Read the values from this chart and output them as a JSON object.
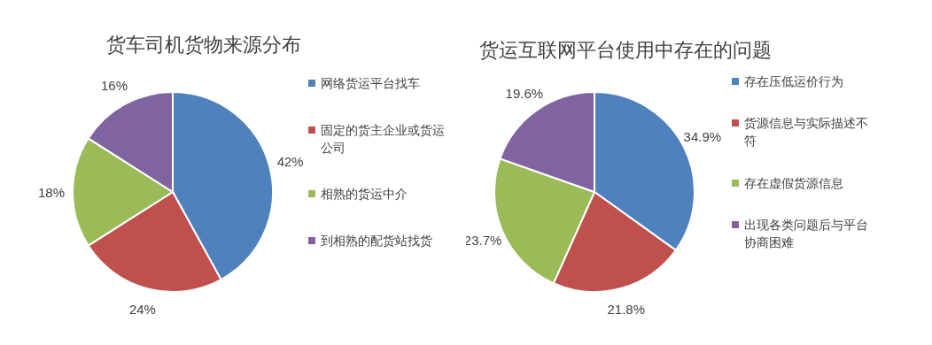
{
  "chart_data": [
    {
      "type": "pie",
      "title": "货车司机货物来源分布",
      "categories": [
        "网络货运平台找车",
        "固定的货主企业或货运公司",
        "相熟的货运中介",
        "到相熟的配货站找货"
      ],
      "values": [
        42,
        24,
        18,
        16
      ],
      "colors": [
        "#4f81bd",
        "#c0504d",
        "#9bbb59",
        "#8064a2"
      ],
      "value_labels": [
        "42%",
        "24%",
        "18%",
        "16%"
      ],
      "legend": "right"
    },
    {
      "type": "pie",
      "title": "货运互联网平台使用中存在的问题",
      "categories": [
        "存在压低运价行为",
        "货源信息与实际描述不符",
        "存在虚假货源信息",
        "出现各类问题后与平台协商困难"
      ],
      "values": [
        34.9,
        21.8,
        23.7,
        19.6
      ],
      "colors": [
        "#4f81bd",
        "#c0504d",
        "#9bbb59",
        "#8064a2"
      ],
      "value_labels": [
        "34.9%",
        "21.8%",
        "23.7%",
        "19.6%"
      ],
      "legend": "right"
    }
  ]
}
